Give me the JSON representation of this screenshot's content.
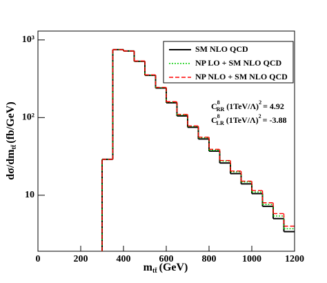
{
  "chart_data": {
    "type": "histogram",
    "x_label": {
      "main": "m",
      "sub": "tt̄",
      "unit": "(GeV)"
    },
    "y_label": {
      "main": "dσ/dm",
      "sub": "tt̄",
      "unit": "(fb/GeV)"
    },
    "bins": [
      300,
      350,
      400,
      450,
      500,
      550,
      600,
      650,
      700,
      750,
      800,
      850,
      900,
      950,
      1000,
      1050,
      1100,
      1150,
      1200
    ],
    "series": [
      {
        "name": "SM NLO QCD",
        "color": "#000000",
        "dash": "solid",
        "values": [
          29,
          750,
          720,
          530,
          350,
          240,
          155,
          105,
          75,
          53,
          37,
          26,
          19,
          14,
          10.5,
          7.2,
          5.0,
          3.4
        ]
      },
      {
        "name": "NP LO + SM NLO QCD",
        "color": "#00cc00",
        "dash": "dotted",
        "values": [
          29,
          750,
          720,
          532,
          352,
          243,
          158,
          108,
          77,
          55,
          38,
          27.5,
          20,
          14.8,
          11,
          7.6,
          5.4,
          3.7
        ]
      },
      {
        "name": "NP NLO + SM NLO QCD",
        "color": "#ff0000",
        "dash": "dashed",
        "values": [
          29,
          750,
          720,
          535,
          355,
          245,
          160,
          110,
          78,
          56,
          39,
          28,
          20.5,
          15.2,
          11.5,
          8.0,
          5.8,
          4.0
        ]
      }
    ],
    "annotations": [
      {
        "symbol": "C",
        "sup": "8",
        "sub": "RR",
        "factor": "(1TeV/Λ)",
        "power": "2",
        "value": "= 4.92"
      },
      {
        "symbol": "C",
        "sup": "8",
        "sub": "LR",
        "factor": "(1TeV/Λ)",
        "power": "2",
        "value": "= -3.88"
      }
    ],
    "xlim": [
      0,
      1200
    ],
    "xticks": [
      0,
      200,
      400,
      600,
      800,
      1000,
      1200
    ],
    "ylim": [
      1.9,
      1300
    ],
    "log_y": true,
    "yticks": [
      {
        "value": 10,
        "label": "10"
      },
      {
        "value": 100,
        "label": "10²"
      },
      {
        "value": 1000,
        "label": "10³"
      }
    ],
    "legend": "top-right"
  }
}
